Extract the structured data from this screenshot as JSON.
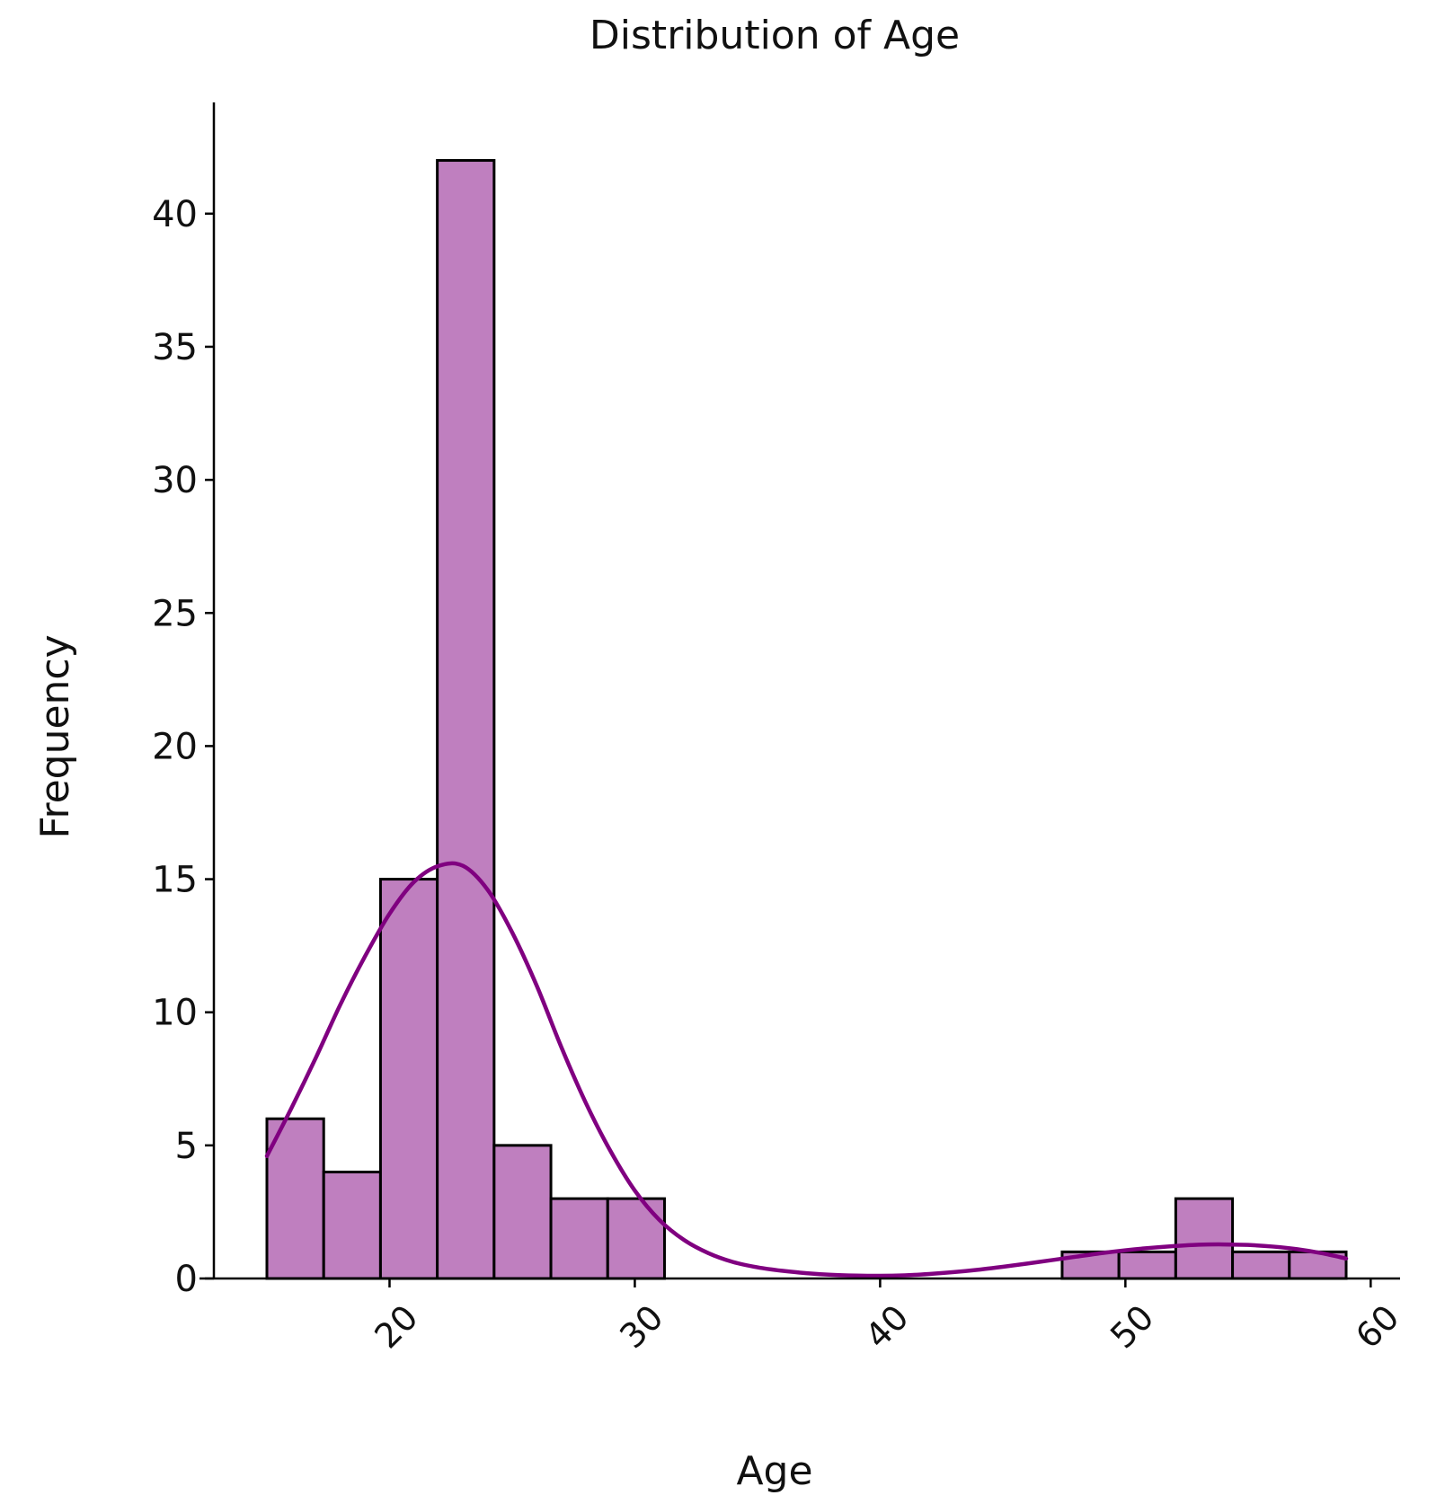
{
  "chart_data": {
    "type": "bar",
    "title": "Distribution of Age",
    "xlabel": "Age",
    "ylabel": "Frequency",
    "xlim": [
      13,
      61
    ],
    "ylim": [
      0,
      44
    ],
    "xticks": [
      20,
      30,
      40,
      50,
      60
    ],
    "yticks": [
      0,
      5,
      10,
      15,
      20,
      25,
      30,
      35,
      40
    ],
    "x_tick_rotation_deg": 45,
    "grid": false,
    "bins": {
      "edges": [
        15.0,
        17.3158,
        19.6316,
        21.9474,
        24.2632,
        26.5789,
        28.8947,
        31.2105,
        33.5263,
        35.8421,
        38.1579,
        40.4737,
        42.7895,
        45.1053,
        47.4211,
        49.7368,
        52.0526,
        54.3684,
        56.6842,
        59.0
      ],
      "counts": [
        6,
        4,
        15,
        42,
        5,
        3,
        3,
        0,
        0,
        0,
        0,
        0,
        0,
        0,
        1,
        1,
        3,
        1,
        1
      ]
    },
    "kde": {
      "x": [
        15,
        16,
        17,
        18,
        19,
        20,
        21,
        22,
        23,
        24,
        25,
        26,
        27,
        28,
        29,
        30,
        31,
        32,
        33,
        34,
        35,
        36,
        37,
        38,
        39,
        40,
        41,
        42,
        43,
        44,
        45,
        46,
        47,
        48,
        49,
        50,
        51,
        52,
        53,
        54,
        55,
        56,
        57,
        58,
        59
      ],
      "y": [
        4.6,
        6.4,
        8.3,
        10.3,
        12.1,
        13.7,
        14.9,
        15.5,
        15.5,
        14.6,
        13.0,
        11.0,
        8.7,
        6.6,
        4.8,
        3.3,
        2.2,
        1.45,
        0.95,
        0.62,
        0.42,
        0.29,
        0.2,
        0.14,
        0.11,
        0.1,
        0.12,
        0.17,
        0.24,
        0.33,
        0.44,
        0.56,
        0.69,
        0.82,
        0.95,
        1.06,
        1.15,
        1.22,
        1.27,
        1.28,
        1.26,
        1.2,
        1.1,
        0.95,
        0.75
      ]
    },
    "colors": {
      "bar_fill": "#bf7fbf",
      "bar_edge": "#000000",
      "kde_line": "#800080",
      "axis": "#000000"
    }
  }
}
